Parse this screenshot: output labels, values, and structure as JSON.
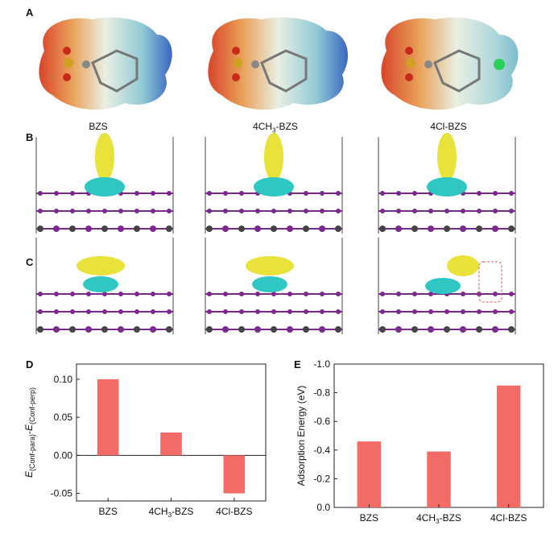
{
  "panels": {
    "a": "A",
    "b": "B",
    "c": "C",
    "d": "D",
    "e": "E"
  },
  "molecules": [
    "BZS",
    "4CH3-BZS",
    "4Cl-BZS"
  ],
  "molecule_labels": {
    "bzs": "BZS",
    "ch3_main": "4CH",
    "ch3_sub": "3",
    "ch3_tail": "-BZS",
    "cl": "4Cl-BZS"
  },
  "colors": {
    "bar": "#f26b66",
    "esp_red": "#d9482b",
    "esp_blue": "#3b5fb8",
    "charge_yellow": "#e8e23a",
    "charge_cyan": "#2fc7c4",
    "atom_purple": "#7a2a8c",
    "highlight": "#e05a5a"
  },
  "chart_data": [
    {
      "type": "bar",
      "panel": "D",
      "categories": [
        "BZS",
        "4CH3-BZS",
        "4Cl-BZS"
      ],
      "values": [
        0.1,
        0.03,
        -0.05
      ],
      "ylabel": "E(Conf-para)-E(Conf-perp)",
      "ylim": [
        -0.06,
        0.12
      ],
      "yticks": [
        "0.10",
        "0.05",
        "0.00",
        "-0.05"
      ],
      "ytick_values": [
        0.1,
        0.05,
        0.0,
        -0.05
      ]
    },
    {
      "type": "bar",
      "panel": "E",
      "categories": [
        "BZS",
        "4CH3-BZS",
        "4Cl-BZS"
      ],
      "values": [
        -0.46,
        -0.39,
        -0.85
      ],
      "ylabel": "Adsorption Energy (eV)",
      "ylim": [
        0.0,
        -1.0
      ],
      "yticks": [
        "-1.0",
        "-0.8",
        "-0.6",
        "-0.4",
        "-0.2",
        "0.0"
      ],
      "ytick_values": [
        -1.0,
        -0.8,
        -0.6,
        -0.4,
        -0.2,
        0.0
      ]
    }
  ]
}
